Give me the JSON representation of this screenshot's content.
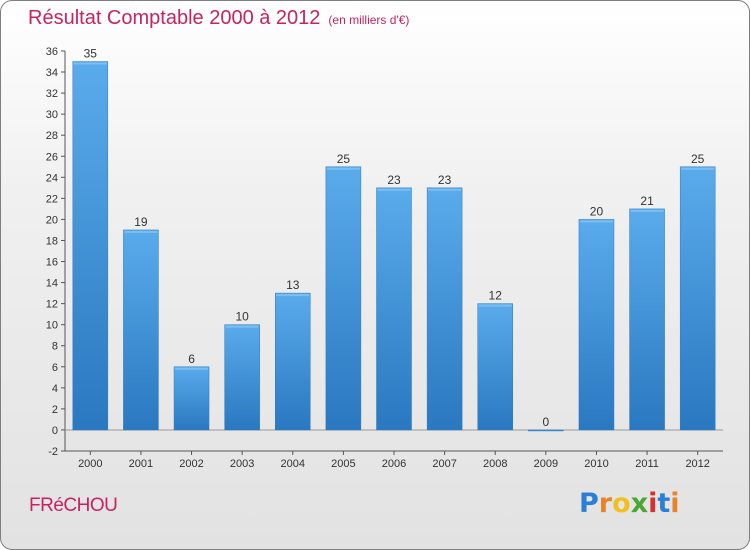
{
  "title": "Résultat Comptable 2000 à 2012",
  "subtitle": "(en milliers d'€)",
  "commune": "FRéCHOU",
  "logo": {
    "letters": [
      "P",
      "r",
      "o",
      "x",
      "i",
      "t",
      "i"
    ],
    "colors": [
      "#2a7fd6",
      "#e8832a",
      "#f2c01e",
      "#4aa832",
      "#d8302f",
      "#2a7fd6",
      "#e8832a"
    ]
  },
  "colors": {
    "bar": "#4f9fe0",
    "bar_dark": "#2c7ac4",
    "accent": "#c8235f"
  },
  "chart_data": {
    "type": "bar",
    "categories": [
      "2000",
      "2001",
      "2002",
      "2003",
      "2004",
      "2005",
      "2006",
      "2007",
      "2008",
      "2009",
      "2010",
      "2011",
      "2012"
    ],
    "values": [
      35,
      19,
      6,
      10,
      13,
      25,
      23,
      23,
      12,
      0,
      20,
      21,
      25
    ],
    "ylim": [
      -2,
      36
    ],
    "yticks": [
      -2,
      0,
      2,
      4,
      6,
      8,
      10,
      12,
      14,
      16,
      18,
      20,
      22,
      24,
      26,
      28,
      30,
      32,
      34,
      36
    ],
    "grid": false,
    "legend": "none"
  }
}
